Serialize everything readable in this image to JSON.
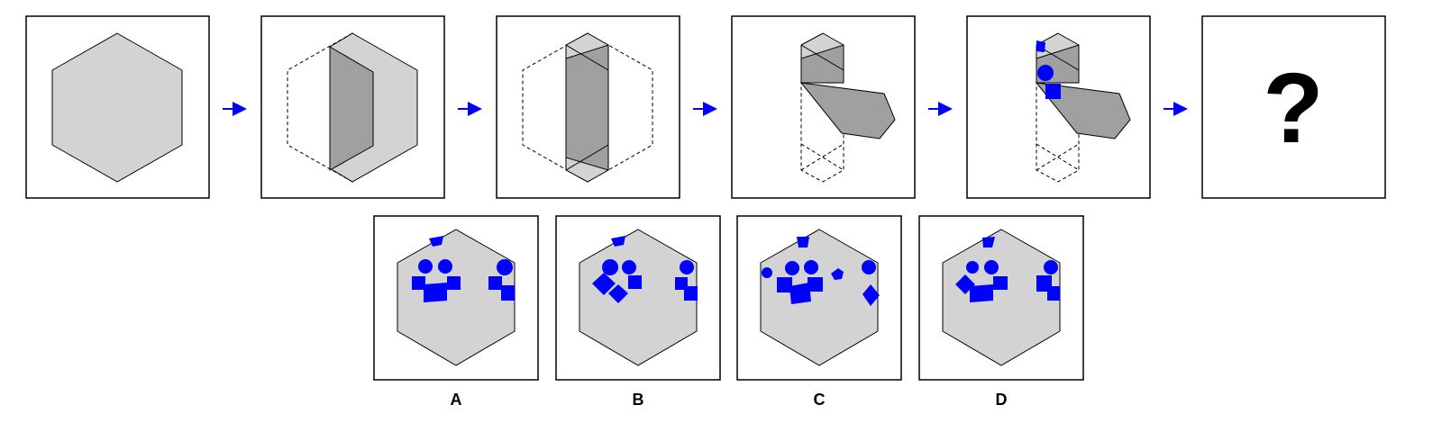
{
  "question_mark": "?",
  "options": [
    {
      "label": "A"
    },
    {
      "label": "B"
    },
    {
      "label": "C"
    },
    {
      "label": "D"
    }
  ],
  "colors": {
    "paper": "#d3d3d3",
    "folded": "#a0a0a0",
    "mark": "#0000ff",
    "arrow": "#0000ff"
  }
}
